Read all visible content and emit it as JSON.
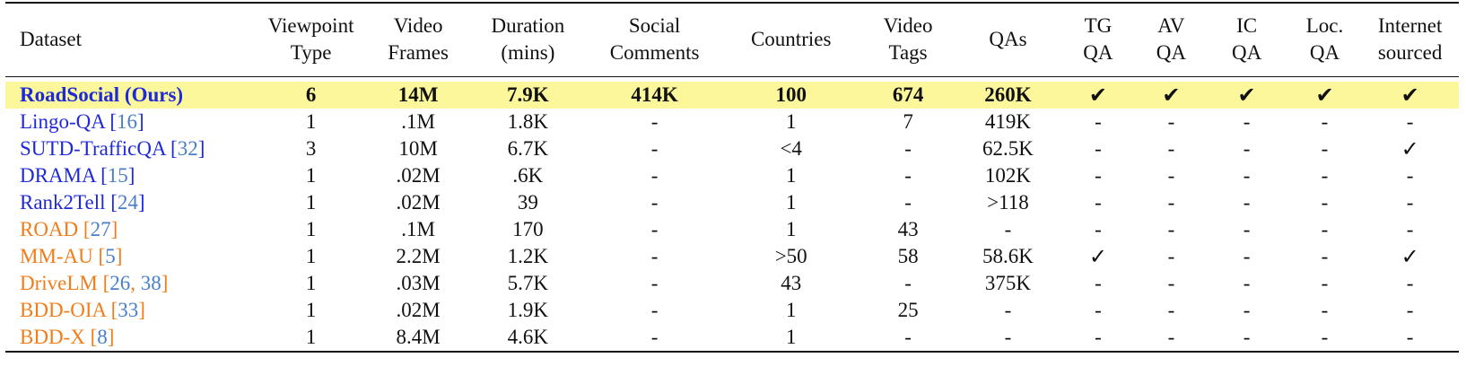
{
  "headers": [
    [
      "Dataset"
    ],
    [
      "Viewpoint",
      "Type"
    ],
    [
      "Video",
      "Frames"
    ],
    [
      "Duration",
      "(mins)"
    ],
    [
      "Social",
      "Comments"
    ],
    [
      "Countries"
    ],
    [
      "Video",
      "Tags"
    ],
    [
      "QAs"
    ],
    [
      "TG",
      "QA"
    ],
    [
      "AV",
      "QA"
    ],
    [
      "IC",
      "QA"
    ],
    [
      "Loc.",
      "QA"
    ],
    [
      "Internet",
      "sourced"
    ]
  ],
  "highlight_color": "#fbf79a",
  "group_colors": {
    "blue": "#1e2ad8",
    "orange": "#f07d1a",
    "citation": "#4a7fc8"
  },
  "rows": [
    {
      "name": "RoadSocial (Ours)",
      "refs": [],
      "color": "blue",
      "highlight": true,
      "cells": [
        "6",
        "14M",
        "7.9K",
        "414K",
        "100",
        "674",
        "260K",
        "✔",
        "✔",
        "✔",
        "✔",
        "✔"
      ]
    },
    {
      "name": "Lingo-QA",
      "refs": [
        "16"
      ],
      "color": "blue",
      "highlight": false,
      "cells": [
        "1",
        ".1M",
        "1.8K",
        "-",
        "1",
        "7",
        "419K",
        "-",
        "-",
        "-",
        "-",
        "-"
      ]
    },
    {
      "name": "SUTD-TrafficQA",
      "refs": [
        "32"
      ],
      "color": "blue",
      "highlight": false,
      "cells": [
        "3",
        "10M",
        "6.7K",
        "-",
        "<4",
        "-",
        "62.5K",
        "-",
        "-",
        "-",
        "-",
        "✓"
      ]
    },
    {
      "name": "DRAMA",
      "refs": [
        "15"
      ],
      "color": "blue",
      "highlight": false,
      "cells": [
        "1",
        ".02M",
        ".6K",
        "-",
        "1",
        "-",
        "102K",
        "-",
        "-",
        "-",
        "-",
        "-"
      ]
    },
    {
      "name": "Rank2Tell",
      "refs": [
        "24"
      ],
      "color": "blue",
      "highlight": false,
      "cells": [
        "1",
        ".02M",
        "39",
        "-",
        "1",
        "-",
        ">118",
        "-",
        "-",
        "-",
        "-",
        "-"
      ]
    },
    {
      "name": "ROAD",
      "refs": [
        "27"
      ],
      "color": "orange",
      "highlight": false,
      "cells": [
        "1",
        ".1M",
        "170",
        "-",
        "1",
        "43",
        "-",
        "-",
        "-",
        "-",
        "-",
        "-"
      ]
    },
    {
      "name": "MM-AU",
      "refs": [
        "5"
      ],
      "color": "orange",
      "highlight": false,
      "cells": [
        "1",
        "2.2M",
        "1.2K",
        "-",
        ">50",
        "58",
        "58.6K",
        "✓",
        "-",
        "-",
        "-",
        "✓"
      ]
    },
    {
      "name": "DriveLM",
      "refs": [
        "26",
        "38"
      ],
      "color": "orange",
      "highlight": false,
      "cells": [
        "1",
        ".03M",
        "5.7K",
        "-",
        "43",
        "-",
        "375K",
        "-",
        "-",
        "-",
        "-",
        "-"
      ]
    },
    {
      "name": "BDD-OIA",
      "refs": [
        "33"
      ],
      "color": "orange",
      "highlight": false,
      "cells": [
        "1",
        ".02M",
        "1.9K",
        "-",
        "1",
        "25",
        "-",
        "-",
        "-",
        "-",
        "-",
        "-"
      ]
    },
    {
      "name": "BDD-X",
      "refs": [
        "8"
      ],
      "color": "orange",
      "highlight": false,
      "cells": [
        "1",
        "8.4M",
        "4.6K",
        "-",
        "1",
        "-",
        "-",
        "-",
        "-",
        "-",
        "-",
        "-"
      ]
    }
  ]
}
